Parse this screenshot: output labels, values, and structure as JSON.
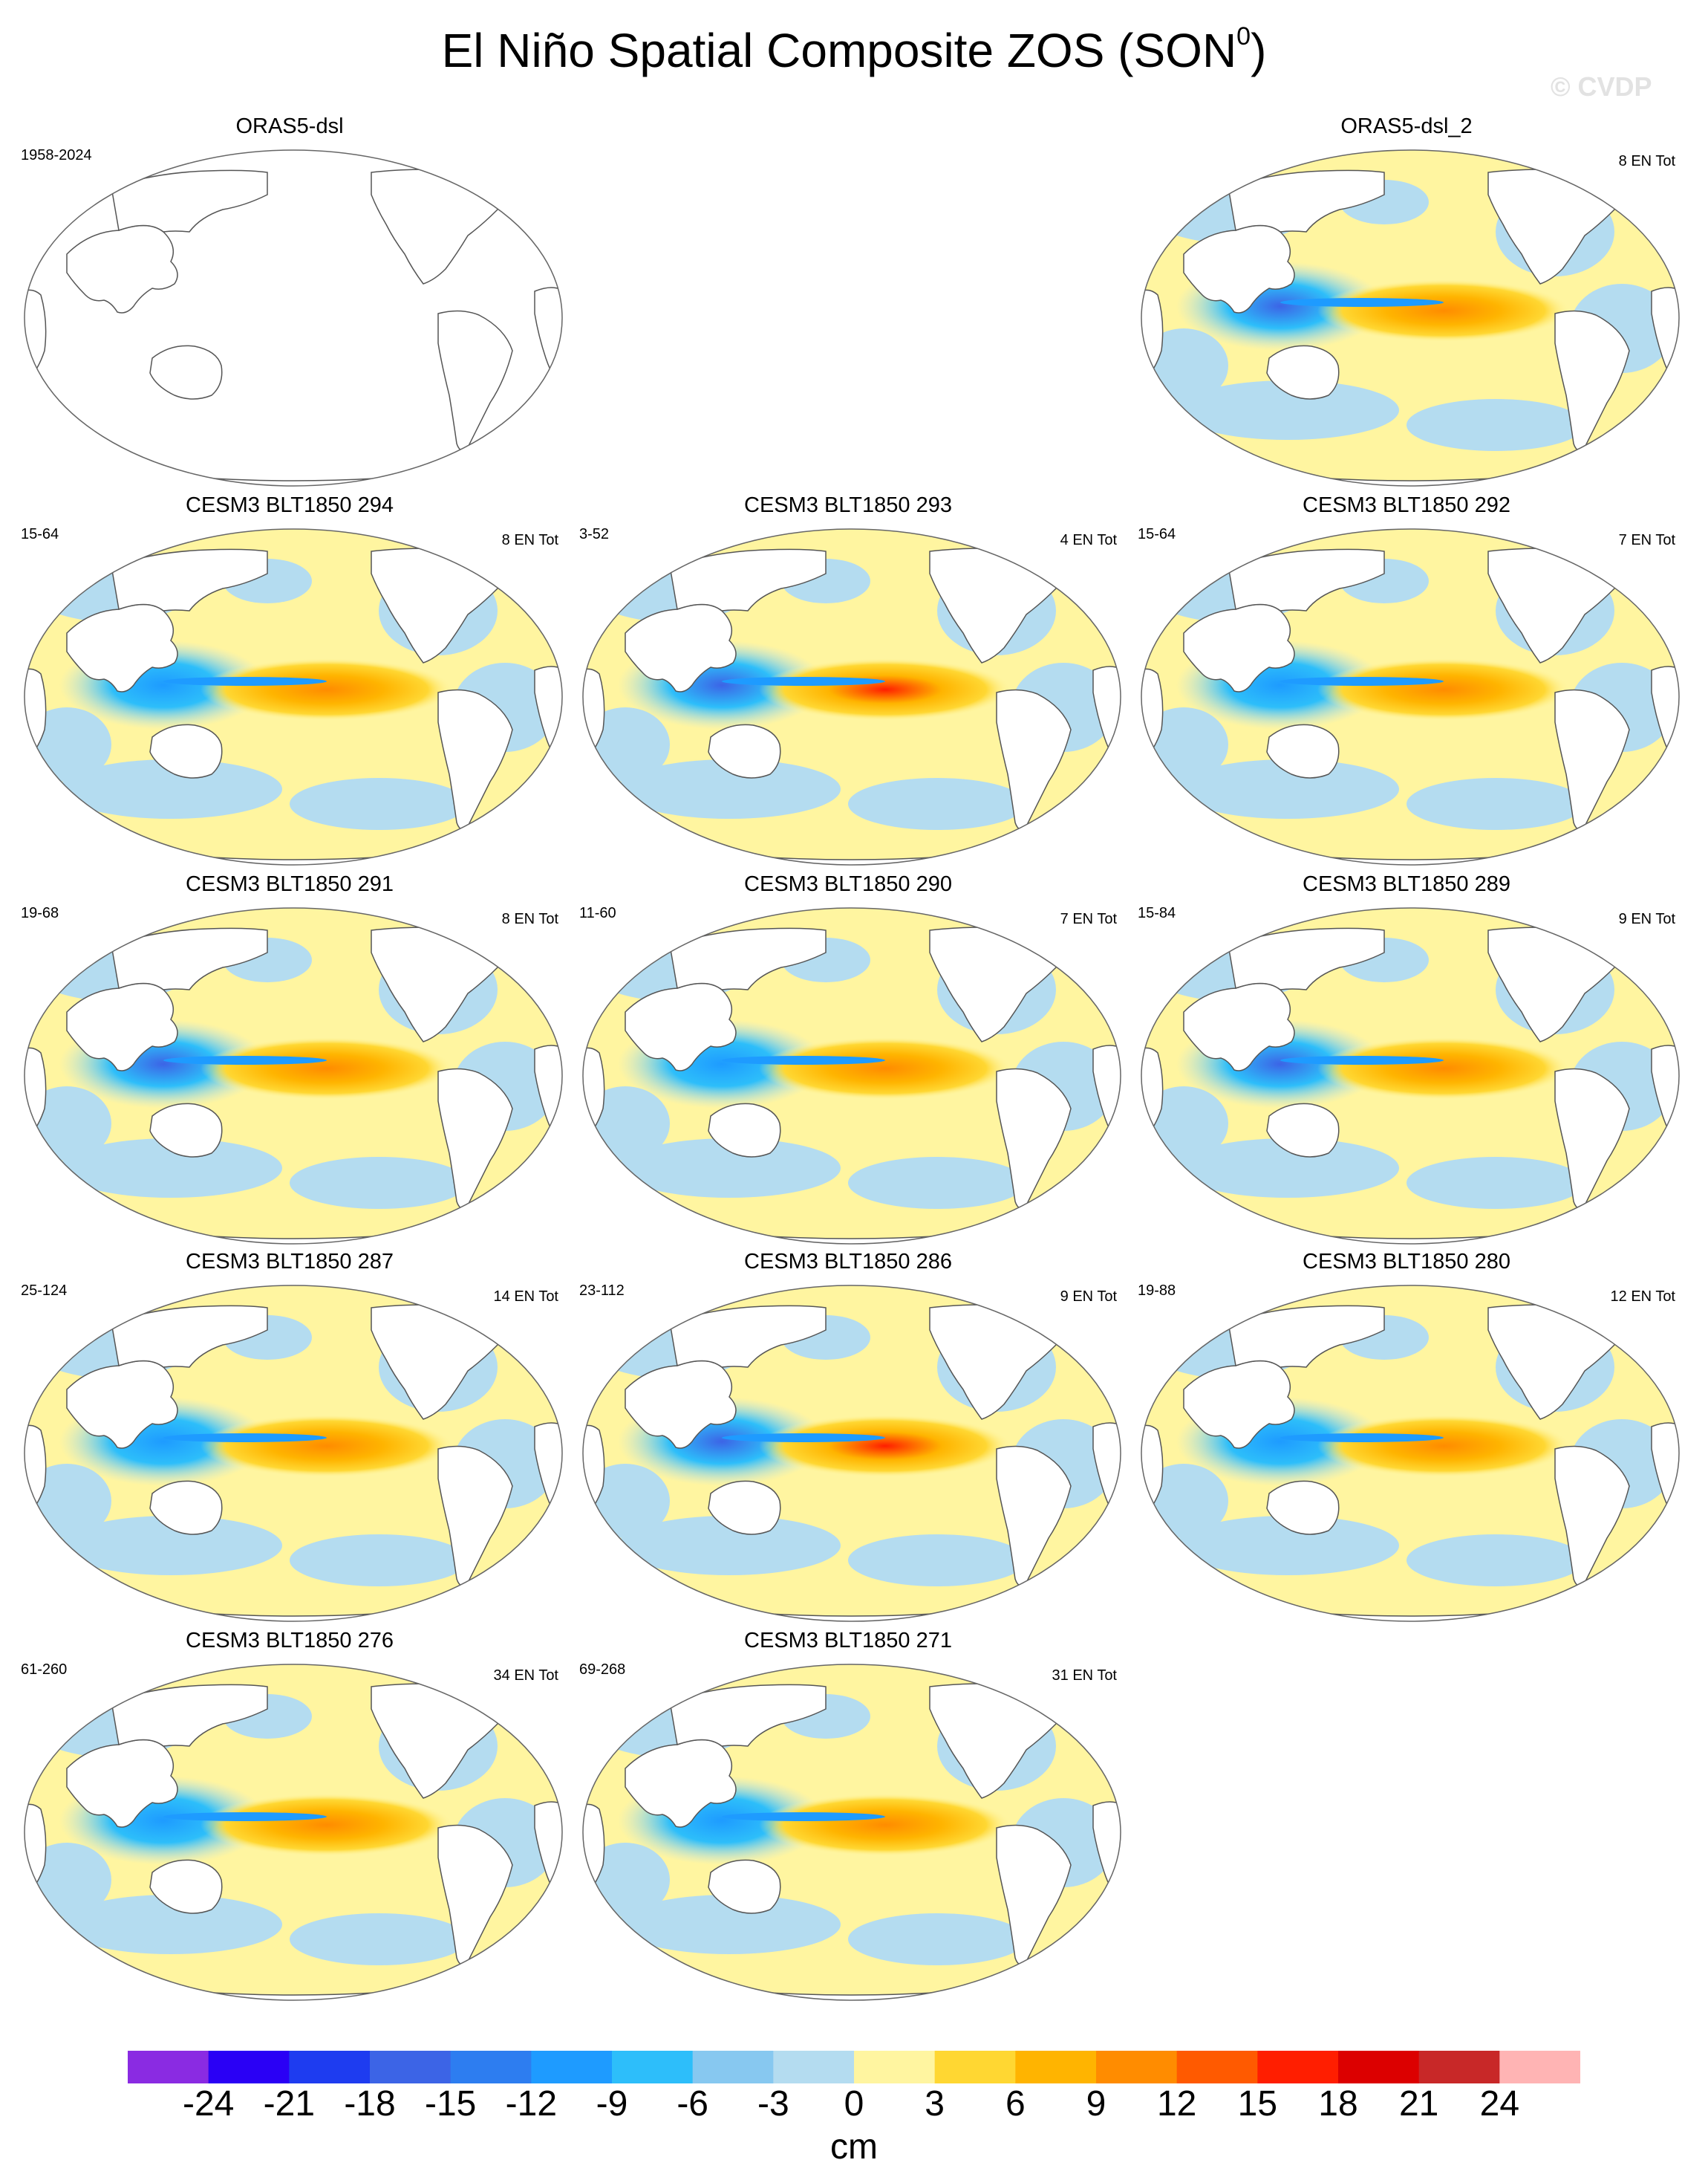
{
  "title": "El Niño Spatial Composite ZOS (SON",
  "title_sup": "0",
  "title_close": ")",
  "watermark": "© CVDP",
  "panels": [
    {
      "id": "orasdsl",
      "title": "ORAS5-dsl",
      "years": "1958-2024",
      "count": "",
      "filled": false
    },
    {
      "id": "oras2",
      "title": "ORAS5-dsl_2",
      "years": "",
      "count": "8 EN Tot",
      "filled": true,
      "intensity": 0.85
    },
    {
      "id": "b294",
      "title": "CESM3 BLT1850 294",
      "years": "15-64",
      "count": "8 EN Tot",
      "filled": true,
      "intensity": 0.75
    },
    {
      "id": "b293",
      "title": "CESM3 BLT1850 293",
      "years": "3-52",
      "count": "4 EN Tot",
      "filled": true,
      "intensity": 0.95
    },
    {
      "id": "b292",
      "title": "CESM3 BLT1850 292",
      "years": "15-64",
      "count": "7 EN Tot",
      "filled": true,
      "intensity": 0.45
    },
    {
      "id": "b291",
      "title": "CESM3 BLT1850 291",
      "years": "19-68",
      "count": "8 EN Tot",
      "filled": true,
      "intensity": 0.85
    },
    {
      "id": "b290",
      "title": "CESM3 BLT1850 290",
      "years": "11-60",
      "count": "7 EN Tot",
      "filled": true,
      "intensity": 0.8
    },
    {
      "id": "b289",
      "title": "CESM3 BLT1850 289",
      "years": "15-84",
      "count": "9 EN Tot",
      "filled": true,
      "intensity": 0.85
    },
    {
      "id": "b287",
      "title": "CESM3 BLT1850 287",
      "years": "25-124",
      "count": "14 EN Tot",
      "filled": true,
      "intensity": 0.75
    },
    {
      "id": "b286",
      "title": "CESM3 BLT1850 286",
      "years": "23-112",
      "count": "9 EN Tot",
      "filled": true,
      "intensity": 0.9
    },
    {
      "id": "b280",
      "title": "CESM3 BLT1850 280",
      "years": "19-88",
      "count": "12 EN Tot",
      "filled": true,
      "intensity": 0.75
    },
    {
      "id": "b276",
      "title": "CESM3 BLT1850 276",
      "years": "61-260",
      "count": "34 EN Tot",
      "filled": true,
      "intensity": 0.75
    },
    {
      "id": "b271",
      "title": "CESM3 BLT1850 271",
      "years": "69-268",
      "count": "31 EN Tot",
      "filled": true,
      "intensity": 0.7
    }
  ],
  "colorbar": {
    "units": "cm",
    "labels": [
      "-24",
      "-21",
      "-18",
      "-15",
      "-12",
      "-9",
      "-6",
      "-3",
      "0",
      "3",
      "6",
      "9",
      "12",
      "15",
      "18",
      "21",
      "24"
    ],
    "colors": [
      "#8a2be2",
      "#2a00f5",
      "#1e3cf0",
      "#3c64e6",
      "#2d7df0",
      "#1e9bff",
      "#2dbefa",
      "#87c8f0",
      "#b4dcf0",
      "#fff5a0",
      "#ffd732",
      "#ffb400",
      "#ff8c00",
      "#ff5a00",
      "#ff1e00",
      "#dc0000",
      "#c82828",
      "#ffb4b4"
    ]
  }
}
